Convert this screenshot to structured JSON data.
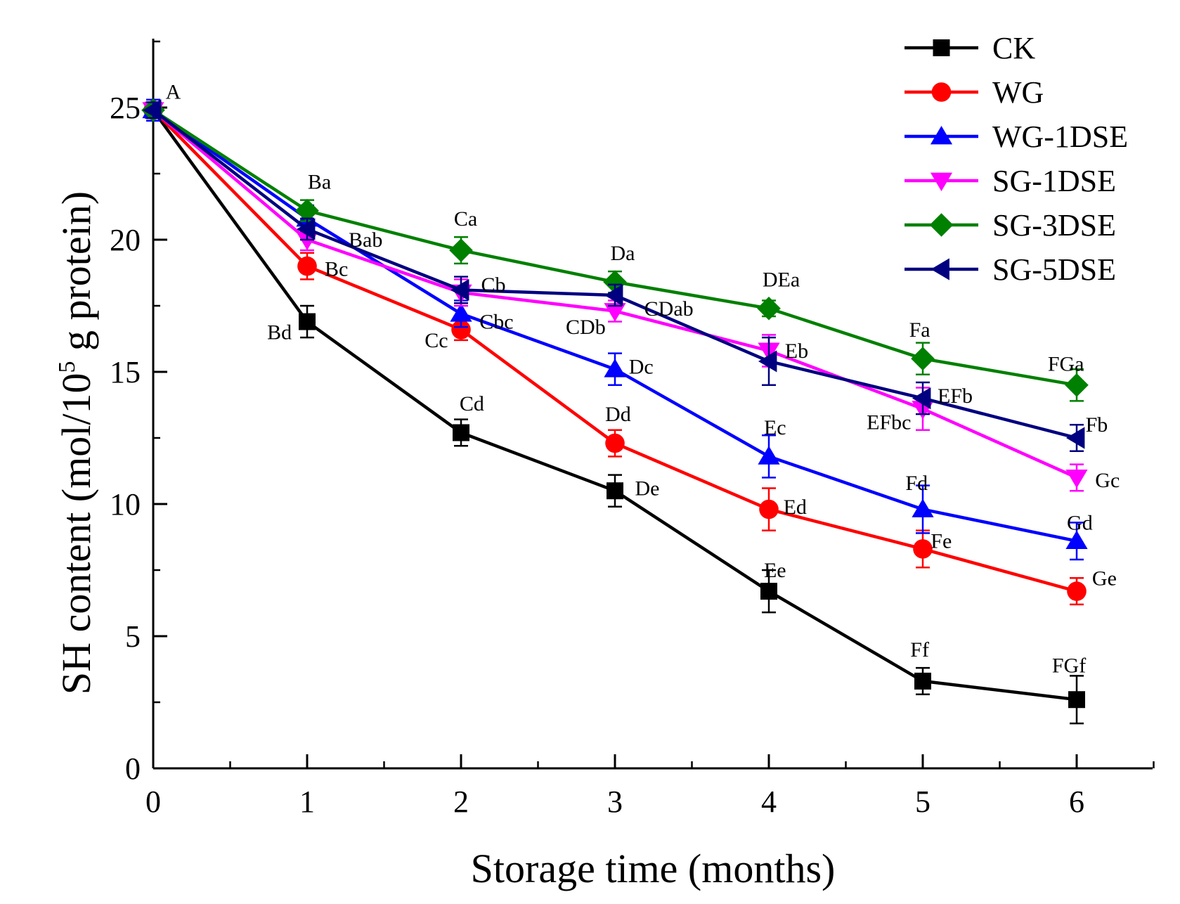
{
  "chart_data": {
    "type": "line",
    "title": "",
    "xlabel": "Storage time (months)",
    "ylabel_parts": {
      "before": "SH content (mol/10",
      "sup": "5",
      "after": " g protein)"
    },
    "x": [
      0,
      1,
      2,
      3,
      4,
      5,
      6
    ],
    "xlim": [
      0,
      6.5
    ],
    "ylim": [
      0,
      27.5
    ],
    "xticks": [
      0,
      1,
      2,
      3,
      4,
      5,
      6
    ],
    "yticks": [
      0,
      5,
      10,
      15,
      20,
      25
    ],
    "legend_position": "top-right",
    "series": [
      {
        "name": "CK",
        "color": "#000000",
        "marker": "square",
        "values": [
          24.9,
          16.9,
          12.7,
          10.5,
          6.7,
          3.3,
          2.6
        ],
        "errors": [
          0.3,
          0.6,
          0.5,
          0.6,
          0.8,
          0.5,
          0.9
        ]
      },
      {
        "name": "WG",
        "color": "#ff0000",
        "marker": "circle",
        "values": [
          24.9,
          19.0,
          16.6,
          12.3,
          9.8,
          8.3,
          6.7
        ],
        "errors": [
          0.3,
          0.5,
          0.4,
          0.5,
          0.8,
          0.7,
          0.5
        ]
      },
      {
        "name": "WG-1DSE",
        "color": "#0000ff",
        "marker": "triangle-up",
        "values": [
          24.9,
          20.8,
          17.2,
          15.1,
          11.8,
          9.8,
          8.6
        ],
        "errors": [
          0.4,
          0.5,
          0.5,
          0.6,
          0.8,
          0.9,
          0.7
        ]
      },
      {
        "name": "SG-1DSE",
        "color": "#ff00ff",
        "marker": "triangle-down",
        "values": [
          24.9,
          20.0,
          18.0,
          17.3,
          15.8,
          13.6,
          11.0
        ],
        "errors": [
          0.3,
          0.4,
          0.5,
          0.4,
          0.6,
          0.8,
          0.5
        ]
      },
      {
        "name": "SG-3DSE",
        "color": "#008000",
        "marker": "diamond",
        "values": [
          24.9,
          21.1,
          19.6,
          18.4,
          17.4,
          15.5,
          14.5
        ],
        "errors": [
          0.3,
          0.4,
          0.5,
          0.4,
          0.3,
          0.6,
          0.6
        ]
      },
      {
        "name": "SG-5DSE",
        "color": "#000080",
        "marker": "triangle-left",
        "values": [
          24.9,
          20.4,
          18.1,
          17.9,
          15.4,
          14.0,
          12.5
        ],
        "errors": [
          0.3,
          0.4,
          0.5,
          0.4,
          0.9,
          0.6,
          0.5
        ]
      }
    ],
    "annotations": [
      {
        "text": "A",
        "x": 0.13,
        "y": 25.6
      },
      {
        "text": "Ba",
        "x": 1.08,
        "y": 22.2
      },
      {
        "text": "Bab",
        "x": 1.38,
        "y": 20.0
      },
      {
        "text": "Bc",
        "x": 1.19,
        "y": 18.9
      },
      {
        "text": "Bd",
        "x": 0.82,
        "y": 16.5
      },
      {
        "text": "Ca",
        "x": 2.03,
        "y": 20.8
      },
      {
        "text": "Cb",
        "x": 2.21,
        "y": 18.3
      },
      {
        "text": "Cbc",
        "x": 2.23,
        "y": 16.9
      },
      {
        "text": "Cc",
        "x": 1.84,
        "y": 16.2
      },
      {
        "text": "Cd",
        "x": 2.07,
        "y": 13.8
      },
      {
        "text": "Da",
        "x": 3.05,
        "y": 19.5
      },
      {
        "text": "CDab",
        "x": 3.35,
        "y": 17.4
      },
      {
        "text": "CDb",
        "x": 2.81,
        "y": 16.7
      },
      {
        "text": "Dc",
        "x": 3.17,
        "y": 15.2
      },
      {
        "text": "Dd",
        "x": 3.02,
        "y": 13.4
      },
      {
        "text": "De",
        "x": 3.21,
        "y": 10.6
      },
      {
        "text": "DEa",
        "x": 4.08,
        "y": 18.5
      },
      {
        "text": "Eb",
        "x": 4.18,
        "y": 15.8
      },
      {
        "text": "Ec",
        "x": 4.04,
        "y": 12.9
      },
      {
        "text": "Ed",
        "x": 4.17,
        "y": 9.9
      },
      {
        "text": "Ee",
        "x": 4.04,
        "y": 7.5
      },
      {
        "text": "Fa",
        "x": 4.98,
        "y": 16.6
      },
      {
        "text": "EFb",
        "x": 5.21,
        "y": 14.1
      },
      {
        "text": "EFbc",
        "x": 4.78,
        "y": 13.1
      },
      {
        "text": "Fd",
        "x": 4.96,
        "y": 10.8
      },
      {
        "text": "Fe",
        "x": 5.12,
        "y": 8.6
      },
      {
        "text": "Ff",
        "x": 4.98,
        "y": 4.5
      },
      {
        "text": "FGa",
        "x": 5.93,
        "y": 15.3
      },
      {
        "text": "Fb",
        "x": 6.13,
        "y": 13.0
      },
      {
        "text": "Gc",
        "x": 6.2,
        "y": 10.9
      },
      {
        "text": "Gd",
        "x": 6.02,
        "y": 9.3
      },
      {
        "text": "Ge",
        "x": 6.18,
        "y": 7.2
      },
      {
        "text": "FGf",
        "x": 5.95,
        "y": 3.9
      }
    ]
  }
}
